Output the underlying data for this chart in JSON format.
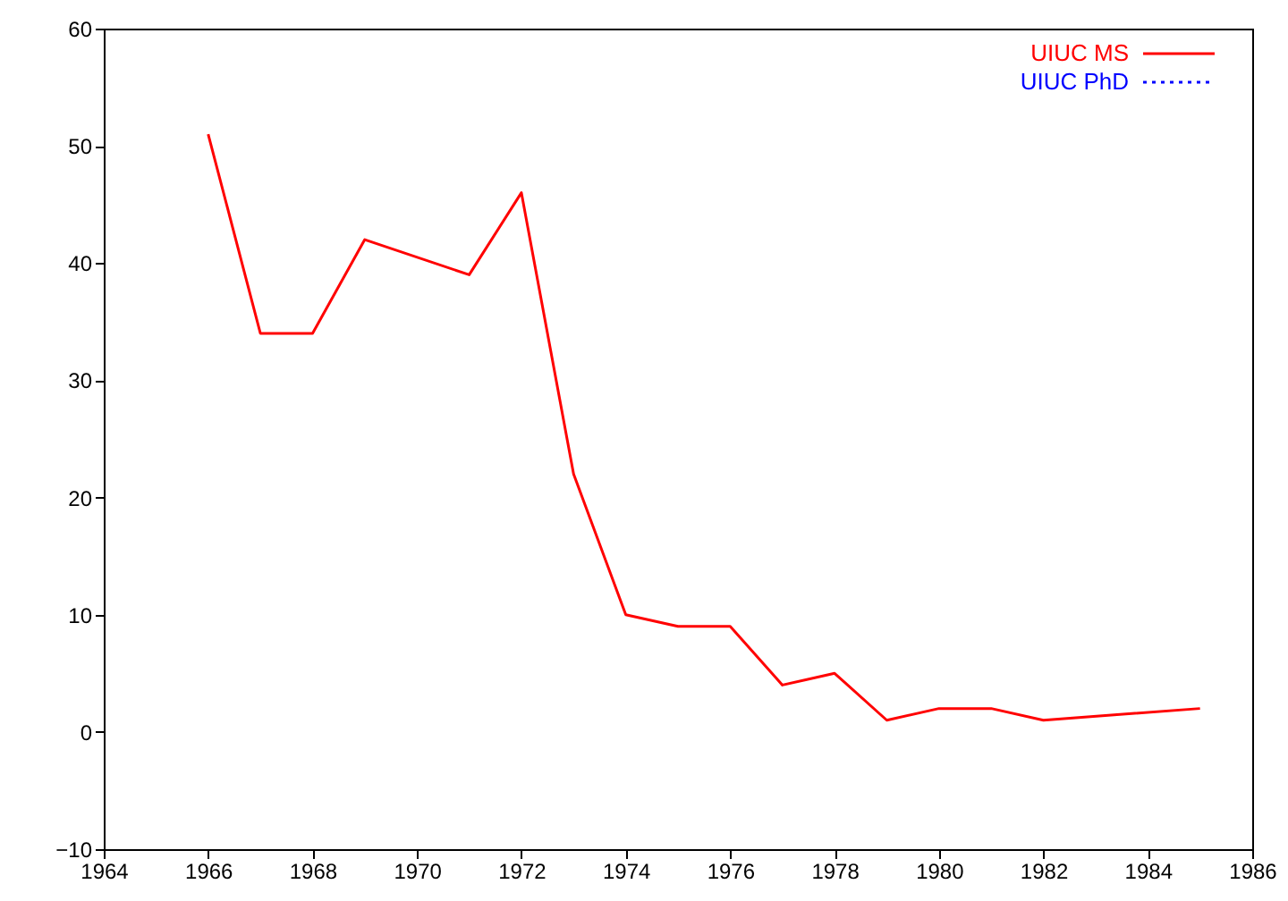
{
  "chart_data": {
    "type": "line",
    "x": [
      1966,
      1967,
      1968,
      1969,
      1971,
      1972,
      1973,
      1974,
      1975,
      1976,
      1977,
      1978,
      1979,
      1980,
      1981,
      1982,
      1985
    ],
    "series": [
      {
        "name": "UIUC MS",
        "color": "#ff0000",
        "line_style": "solid",
        "values": [
          51,
          34,
          34,
          42,
          39,
          46,
          22,
          10,
          9,
          9,
          4,
          5,
          1,
          2,
          2,
          1,
          2
        ]
      },
      {
        "name": "UIUC PhD",
        "color": "#0000ff",
        "line_style": "dotted",
        "values": [
          null,
          null,
          null,
          null,
          null,
          null,
          null,
          null,
          null,
          null,
          null,
          null,
          null,
          null,
          null,
          null,
          null
        ]
      }
    ],
    "xlim": [
      1964,
      1986
    ],
    "xticks": [
      1964,
      1966,
      1968,
      1970,
      1972,
      1974,
      1976,
      1978,
      1980,
      1982,
      1984,
      1986
    ],
    "ylim": [
      -10,
      60
    ],
    "yticks": [
      -10,
      0,
      10,
      20,
      30,
      40,
      50,
      60
    ],
    "grid": false,
    "legend": "top right",
    "marker": "none"
  }
}
